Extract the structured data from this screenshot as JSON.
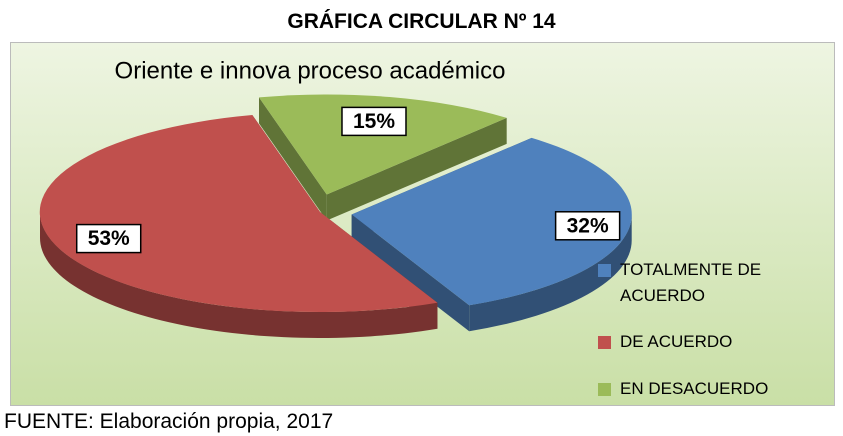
{
  "heading": "GRÁFICA CIRCULAR Nº 14",
  "chart_data": {
    "type": "pie",
    "title": "Oriente e innova proceso académico",
    "categories": [
      "TOTALMENTE DE ACUERDO",
      "DE ACUERDO",
      "EN DESACUERDO"
    ],
    "values": [
      32,
      53,
      15
    ],
    "value_labels": [
      "32%",
      "53%",
      "15%"
    ],
    "colors": [
      "#4f81bd",
      "#c0504d",
      "#9bbb59"
    ],
    "legend": "right"
  },
  "source": "FUENTE: Elaboración propia, 2017"
}
